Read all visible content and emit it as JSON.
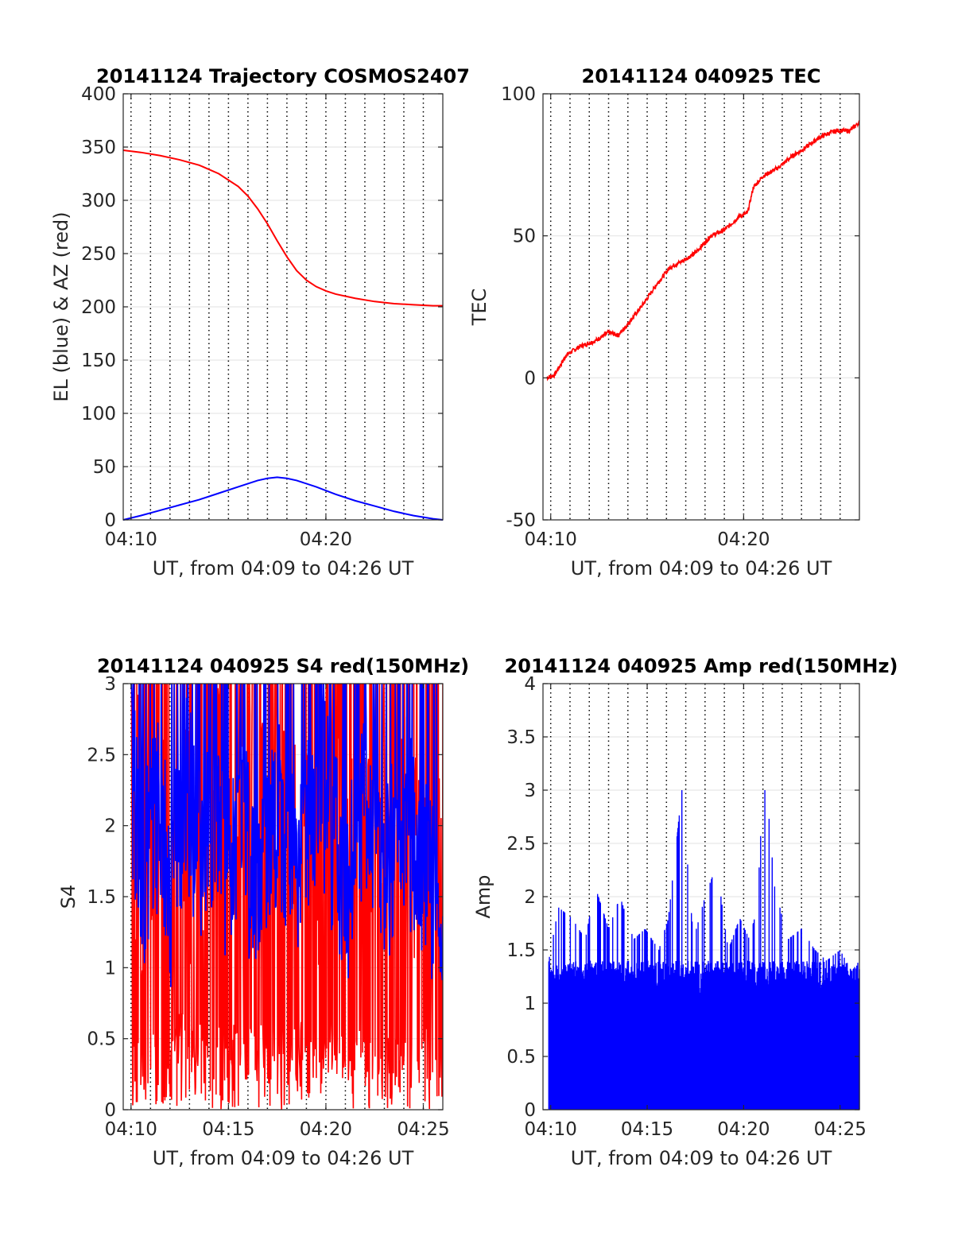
{
  "chart_data": [
    {
      "id": "trajectory",
      "type": "line",
      "title": "20141124 Trajectory COSMOS2407",
      "xlabel": "UT, from 04:09 to 04:26 UT",
      "ylabel": "EL (blue) & AZ (red)",
      "xlim": [
        9.6,
        26.0
      ],
      "ylim": [
        0,
        400
      ],
      "xticks": [
        {
          "v": 10,
          "label": "04:10"
        },
        {
          "v": 20,
          "label": "04:20"
        }
      ],
      "yticks": [
        0,
        50,
        100,
        150,
        200,
        250,
        300,
        350,
        400
      ],
      "vgrid_dotted": [
        10,
        11,
        12,
        13,
        14,
        15,
        16,
        17,
        18,
        19,
        20,
        21,
        22,
        23,
        24,
        25
      ],
      "hgrid": [
        50,
        100,
        150,
        200,
        250,
        300,
        350
      ],
      "series": [
        {
          "color": "#ff0000",
          "x": [
            9.6,
            10.5,
            11.5,
            12.5,
            13.5,
            14.5,
            15.5,
            16.0,
            16.5,
            17.0,
            17.5,
            18.0,
            18.5,
            19.0,
            19.5,
            20.0,
            20.5,
            21.5,
            22.5,
            23.5,
            24.5,
            25.5,
            26.0
          ],
          "y": [
            347,
            345,
            342,
            338,
            333,
            325,
            313,
            304,
            292,
            278,
            262,
            247,
            234,
            225,
            219,
            215,
            212,
            208,
            205,
            203,
            202,
            201,
            201
          ]
        },
        {
          "color": "#0000ff",
          "x": [
            9.6,
            10.5,
            11.5,
            12.5,
            13.5,
            14.5,
            15.5,
            16.5,
            17.0,
            17.5,
            18.0,
            18.5,
            19.5,
            20.5,
            21.5,
            22.5,
            23.5,
            24.5,
            25.5,
            26.0
          ],
          "y": [
            0,
            4,
            9,
            14,
            19,
            25,
            31,
            37,
            39,
            40,
            39,
            37,
            31,
            24,
            18,
            13,
            8,
            4,
            1,
            0
          ]
        }
      ]
    },
    {
      "id": "tec",
      "type": "line",
      "title": "20141124 040925 TEC",
      "xlabel": "UT, from 04:09 to 04:26 UT",
      "ylabel": "TEC",
      "xlim": [
        9.6,
        26.0
      ],
      "ylim": [
        -50,
        100
      ],
      "xticks": [
        {
          "v": 10,
          "label": "04:10"
        },
        {
          "v": 20,
          "label": "04:20"
        }
      ],
      "yticks": [
        -50,
        0,
        50,
        100
      ],
      "vgrid_dotted": [
        10,
        11,
        12,
        13,
        14,
        15,
        16,
        17,
        18,
        19,
        20,
        21,
        22,
        23,
        24,
        25
      ],
      "hgrid": [
        0,
        50
      ],
      "series": [
        {
          "color": "#ff0000",
          "x": [
            9.8,
            10.2,
            10.8,
            11.5,
            12.3,
            13.0,
            13.5,
            14.0,
            14.8,
            15.5,
            16.2,
            16.8,
            17.5,
            18.3,
            19.0,
            19.8,
            20.2,
            20.5,
            21.0,
            21.8,
            22.5,
            23.2,
            24.0,
            24.8,
            25.5,
            26.0
          ],
          "y": [
            0,
            1,
            8,
            11,
            13,
            16,
            15,
            19,
            26,
            33,
            39,
            41,
            44,
            50,
            52,
            57,
            58,
            67,
            71,
            74,
            78,
            81,
            85,
            87,
            87,
            90
          ]
        }
      ]
    },
    {
      "id": "s4",
      "type": "line",
      "title": "20141124 040925 S4 red(150MHz)",
      "xlabel": "UT, from 04:09 to 04:26 UT",
      "ylabel": "S4",
      "xlim": [
        9.6,
        26.0
      ],
      "ylim": [
        0,
        3
      ],
      "xticks": [
        {
          "v": 10,
          "label": "04:10"
        },
        {
          "v": 15,
          "label": "04:15"
        },
        {
          "v": 20,
          "label": "04:20"
        },
        {
          "v": 25,
          "label": "04:25"
        }
      ],
      "yticks": [
        {
          "v": 0,
          "label": "0"
        },
        {
          "v": 0.5,
          "label": "0.5"
        },
        {
          "v": 1,
          "label": "1"
        },
        {
          "v": 1.5,
          "label": "1.5"
        },
        {
          "v": 2,
          "label": "2"
        },
        {
          "v": 2.5,
          "label": "2.5"
        },
        {
          "v": 3,
          "label": "3"
        }
      ],
      "vgrid_dotted": [
        10,
        11,
        12,
        13,
        14,
        15,
        16,
        17,
        18,
        19,
        20,
        21,
        22,
        23,
        24,
        25
      ],
      "hgrid": [
        0.5,
        1,
        1.5,
        2,
        2.5
      ],
      "series": [
        {
          "color": "#ff0000",
          "x": [
            10.0,
            10.8,
            11.6,
            12.4,
            13.2,
            14.0,
            14.8,
            15.6,
            16.4,
            17.2,
            18.0,
            18.8,
            19.6,
            20.4,
            21.2,
            22.0,
            22.8,
            23.6,
            24.4,
            25.2,
            26.0
          ],
          "y": [
            2.2,
            1.9,
            2.6,
            1.4,
            2.3,
            1.8,
            2.7,
            1.5,
            2.4,
            1.9,
            2.6,
            1.3,
            2.1,
            2.8,
            1.7,
            2.4,
            1.9,
            2.3,
            1.6,
            2.1,
            1.2
          ]
        },
        {
          "color": "#0000ff",
          "x": [
            10.0,
            10.7,
            11.4,
            12.1,
            12.8,
            13.5,
            14.2,
            14.9,
            15.6,
            16.3,
            17.0,
            17.7,
            18.4,
            19.1,
            19.8,
            20.5,
            21.2,
            21.9,
            22.6,
            23.3,
            24.0,
            24.7,
            25.4,
            26.0
          ],
          "y": [
            2.4,
            1.7,
            2.1,
            1.5,
            2.3,
            1.8,
            2.0,
            1.6,
            2.2,
            1.5,
            1.9,
            2.1,
            1.7,
            2.0,
            2.3,
            1.8,
            1.6,
            2.2,
            1.9,
            1.7,
            2.1,
            1.8,
            1.6,
            1.1
          ]
        }
      ]
    },
    {
      "id": "amp",
      "type": "line",
      "title": "20141124 040925 Amp red(150MHz)",
      "xlabel": "UT, from 04:09 to 04:26 UT",
      "ylabel": "Amp",
      "xlim": [
        9.6,
        26.0
      ],
      "ylim": [
        0,
        4
      ],
      "xticks": [
        {
          "v": 10,
          "label": "04:10"
        },
        {
          "v": 15,
          "label": "04:15"
        },
        {
          "v": 20,
          "label": "04:20"
        },
        {
          "v": 25,
          "label": "04:25"
        }
      ],
      "yticks": [
        {
          "v": 0,
          "label": "0"
        },
        {
          "v": 0.5,
          "label": "0.5"
        },
        {
          "v": 1,
          "label": "1"
        },
        {
          "v": 1.5,
          "label": "1.5"
        },
        {
          "v": 2,
          "label": "2"
        },
        {
          "v": 2.5,
          "label": "2.5"
        },
        {
          "v": 3,
          "label": "3"
        },
        {
          "v": 3.5,
          "label": "3.5"
        },
        {
          "v": 4,
          "label": "4"
        }
      ],
      "vgrid_dotted": [
        10,
        11,
        12,
        13,
        14,
        15,
        16,
        17,
        18,
        19,
        20,
        21,
        22,
        23,
        24,
        25
      ],
      "hgrid": [
        0.5,
        1,
        1.5,
        2,
        2.5,
        3,
        3.5
      ],
      "series": [
        {
          "color": "#0000ff",
          "x": [
            9.9,
            10.4,
            11.1,
            11.8,
            12.3,
            13.0,
            13.6,
            14.3,
            14.9,
            15.6,
            16.1,
            16.8,
            17.4,
            18.0,
            18.6,
            19.2,
            19.8,
            20.3,
            20.7,
            21.0,
            21.2,
            21.6,
            22.3,
            23.0,
            23.7,
            24.3,
            25.0,
            25.6,
            26.0
          ],
          "y": [
            1.4,
            1.9,
            1.8,
            1.6,
            2.1,
            1.7,
            2.0,
            1.6,
            1.7,
            1.5,
            1.8,
            3.0,
            1.6,
            2.0,
            2.3,
            1.5,
            1.8,
            1.6,
            1.9,
            3.0,
            3.0,
            2.1,
            1.6,
            1.7,
            1.5,
            1.4,
            1.5,
            1.3,
            1.4
          ]
        }
      ]
    }
  ]
}
